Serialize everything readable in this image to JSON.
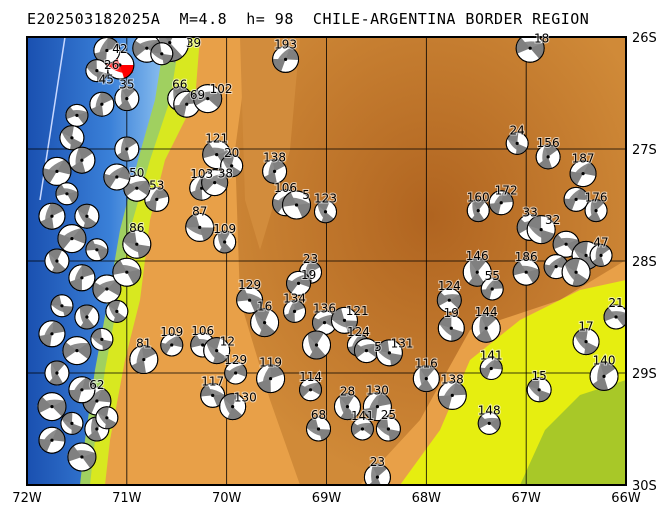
{
  "title": "E202503182025A  M=4.8  h= 98  CHILE-ARGENTINA BORDER REGION",
  "map": {
    "lon_range": [
      -72,
      -66
    ],
    "lat_range": [
      -30,
      -26
    ],
    "lon_ticks": [
      "72W",
      "71W",
      "70W",
      "69W",
      "68W",
      "67W",
      "66W"
    ],
    "lat_ticks": [
      "26S",
      "27S",
      "28S",
      "29S",
      "30S"
    ],
    "colors": {
      "main_event": "#ff0000",
      "mechanism": "#808080",
      "ocean_deep": "#1e5fc0",
      "ocean_shallow": "#6aa8e8",
      "lowland": "#e6f000",
      "green": "#a8c820",
      "highland": "#e8a040",
      "peak": "#b86a20"
    }
  },
  "events": [
    {
      "label": "42",
      "lon": -71.07,
      "lat": -26.25,
      "main": true
    },
    {
      "label": "39",
      "lon": -70.57,
      "lat": -26.05,
      "big": true
    },
    {
      "label": "26",
      "lon": -71.2,
      "lat": -26.12
    },
    {
      "label": "",
      "lon": -70.8,
      "lat": -26.1
    },
    {
      "label": "",
      "lon": -70.65,
      "lat": -26.15
    },
    {
      "label": "66",
      "lon": -70.47,
      "lat": -26.55
    },
    {
      "label": "69",
      "lon": -70.4,
      "lat": -26.6
    },
    {
      "label": "102",
      "lon": -70.19,
      "lat": -26.55
    },
    {
      "label": "45",
      "lon": -71.3,
      "lat": -26.3
    },
    {
      "label": "35",
      "lon": -71.0,
      "lat": -26.55
    },
    {
      "label": "193",
      "lon": -69.41,
      "lat": -26.2
    },
    {
      "label": "18",
      "lon": -66.96,
      "lat": -26.1
    },
    {
      "label": "24",
      "lon": -67.09,
      "lat": -26.95
    },
    {
      "label": "156",
      "lon": -66.78,
      "lat": -27.07
    },
    {
      "label": "187",
      "lon": -66.43,
      "lat": -27.22
    },
    {
      "label": "121",
      "lon": -70.1,
      "lat": -27.05
    },
    {
      "label": "20",
      "lon": -69.95,
      "lat": -27.15
    },
    {
      "label": "138",
      "lon": -69.52,
      "lat": -27.2
    },
    {
      "label": "106",
      "lon": -69.41,
      "lat": -27.48
    },
    {
      "label": "5",
      "lon": -69.3,
      "lat": -27.5
    },
    {
      "label": "123",
      "lon": -69.01,
      "lat": -27.56
    },
    {
      "label": "103",
      "lon": -70.25,
      "lat": -27.35
    },
    {
      "label": "38",
      "lon": -70.12,
      "lat": -27.3
    },
    {
      "label": "87",
      "lon": -70.27,
      "lat": -27.7
    },
    {
      "label": "109",
      "lon": -70.02,
      "lat": -27.83
    },
    {
      "label": "53",
      "lon": -70.7,
      "lat": -27.45
    },
    {
      "label": "50",
      "lon": -70.9,
      "lat": -27.35
    },
    {
      "label": "86",
      "lon": -70.9,
      "lat": -27.85
    },
    {
      "label": "160",
      "lon": -67.48,
      "lat": -27.55
    },
    {
      "label": "172",
      "lon": -67.25,
      "lat": -27.48
    },
    {
      "label": "33",
      "lon": -66.96,
      "lat": -27.7
    },
    {
      "label": "32",
      "lon": -66.85,
      "lat": -27.72
    },
    {
      "label": "176",
      "lon": -66.3,
      "lat": -27.55
    },
    {
      "label": "",
      "lon": -66.5,
      "lat": -27.45
    },
    {
      "label": "",
      "lon": -66.6,
      "lat": -27.85
    },
    {
      "label": "",
      "lon": -66.4,
      "lat": -27.95
    },
    {
      "label": "47",
      "lon": -66.25,
      "lat": -27.95
    },
    {
      "label": "",
      "lon": -66.7,
      "lat": -28.05
    },
    {
      "label": "186",
      "lon": -67.0,
      "lat": -28.1
    },
    {
      "label": "",
      "lon": -66.5,
      "lat": -28.1
    },
    {
      "label": "23",
      "lon": -69.16,
      "lat": -28.1
    },
    {
      "label": "19",
      "lon": -69.28,
      "lat": -28.2
    },
    {
      "label": "129",
      "lon": -69.77,
      "lat": -28.35
    },
    {
      "label": "16",
      "lon": -69.62,
      "lat": -28.55
    },
    {
      "label": "134",
      "lon": -69.32,
      "lat": -28.45
    },
    {
      "label": "136",
      "lon": -69.02,
      "lat": -28.55
    },
    {
      "label": "121",
      "lon": -68.82,
      "lat": -28.53
    },
    {
      "label": "",
      "lon": -69.1,
      "lat": -28.75
    },
    {
      "label": "124",
      "lon": -68.68,
      "lat": -28.75
    },
    {
      "label": "5",
      "lon": -68.6,
      "lat": -28.8
    },
    {
      "label": "131",
      "lon": -68.37,
      "lat": -28.82
    },
    {
      "label": "146",
      "lon": -67.49,
      "lat": -28.1
    },
    {
      "label": "55",
      "lon": -67.34,
      "lat": -28.25
    },
    {
      "label": "124",
      "lon": -67.77,
      "lat": -28.35
    },
    {
      "label": "19",
      "lon": -67.75,
      "lat": -28.6
    },
    {
      "label": "144",
      "lon": -67.4,
      "lat": -28.6
    },
    {
      "label": "141",
      "lon": -67.35,
      "lat": -28.96
    },
    {
      "label": "21",
      "lon": -66.1,
      "lat": -28.5
    },
    {
      "label": "17",
      "lon": -66.4,
      "lat": -28.72
    },
    {
      "label": "140",
      "lon": -66.22,
      "lat": -29.03
    },
    {
      "label": "109",
      "lon": -70.55,
      "lat": -28.75
    },
    {
      "label": "106",
      "lon": -70.24,
      "lat": -28.75
    },
    {
      "label": "12",
      "lon": -70.1,
      "lat": -28.8
    },
    {
      "label": "81",
      "lon": -70.83,
      "lat": -28.88
    },
    {
      "label": "129",
      "lon": -69.91,
      "lat": -29.0
    },
    {
      "label": "117",
      "lon": -70.14,
      "lat": -29.2
    },
    {
      "label": "130",
      "lon": -69.94,
      "lat": -29.3
    },
    {
      "label": "119",
      "lon": -69.56,
      "lat": -29.05
    },
    {
      "label": "114",
      "lon": -69.16,
      "lat": -29.15
    },
    {
      "label": "68",
      "lon": -69.08,
      "lat": -29.5
    },
    {
      "label": "28",
      "lon": -68.79,
      "lat": -29.3
    },
    {
      "label": "130",
      "lon": -68.49,
      "lat": -29.3
    },
    {
      "label": "141",
      "lon": -68.64,
      "lat": -29.5
    },
    {
      "label": "25",
      "lon": -68.38,
      "lat": -29.5
    },
    {
      "label": "116",
      "lon": -68.0,
      "lat": -29.05
    },
    {
      "label": "138",
      "lon": -67.74,
      "lat": -29.2
    },
    {
      "label": "148",
      "lon": -67.37,
      "lat": -29.45
    },
    {
      "label": "15",
      "lon": -66.87,
      "lat": -29.15
    },
    {
      "label": "23",
      "lon": -68.49,
      "lat": -29.93
    },
    {
      "label": "62",
      "lon": -71.3,
      "lat": -29.25
    },
    {
      "label": "",
      "lon": -71.5,
      "lat": -26.7
    },
    {
      "label": "",
      "lon": -71.55,
      "lat": -26.9
    },
    {
      "label": "",
      "lon": -71.45,
      "lat": -27.1
    },
    {
      "label": "",
      "lon": -71.7,
      "lat": -27.2
    },
    {
      "label": "",
      "lon": -71.6,
      "lat": -27.4
    },
    {
      "label": "",
      "lon": -71.4,
      "lat": -27.6
    },
    {
      "label": "",
      "lon": -71.75,
      "lat": -27.6
    },
    {
      "label": "",
      "lon": -71.55,
      "lat": -27.8
    },
    {
      "label": "",
      "lon": -71.3,
      "lat": -27.9
    },
    {
      "label": "",
      "lon": -71.7,
      "lat": -28.0
    },
    {
      "label": "",
      "lon": -71.45,
      "lat": -28.15
    },
    {
      "label": "",
      "lon": -71.2,
      "lat": -28.25
    },
    {
      "label": "",
      "lon": -71.65,
      "lat": -28.4
    },
    {
      "label": "",
      "lon": -71.4,
      "lat": -28.5
    },
    {
      "label": "",
      "lon": -71.75,
      "lat": -28.65
    },
    {
      "label": "",
      "lon": -71.5,
      "lat": -28.8
    },
    {
      "label": "",
      "lon": -71.25,
      "lat": -28.7
    },
    {
      "label": "",
      "lon": -71.7,
      "lat": -29.0
    },
    {
      "label": "",
      "lon": -71.45,
      "lat": -29.15
    },
    {
      "label": "",
      "lon": -71.75,
      "lat": -29.3
    },
    {
      "label": "",
      "lon": -71.55,
      "lat": -29.45
    },
    {
      "label": "",
      "lon": -71.3,
      "lat": -29.5
    },
    {
      "label": "",
      "lon": -71.75,
      "lat": -29.6
    },
    {
      "label": "",
      "lon": -71.45,
      "lat": -29.75
    },
    {
      "label": "",
      "lon": -71.2,
      "lat": -29.4
    },
    {
      "label": "",
      "lon": -71.0,
      "lat": -27.0
    },
    {
      "label": "",
      "lon": -71.1,
      "lat": -27.25
    },
    {
      "label": "",
      "lon": -71.0,
      "lat": -28.1
    },
    {
      "label": "",
      "lon": -71.1,
      "lat": -28.45
    },
    {
      "label": "",
      "lon": -71.25,
      "lat": -26.6
    }
  ]
}
